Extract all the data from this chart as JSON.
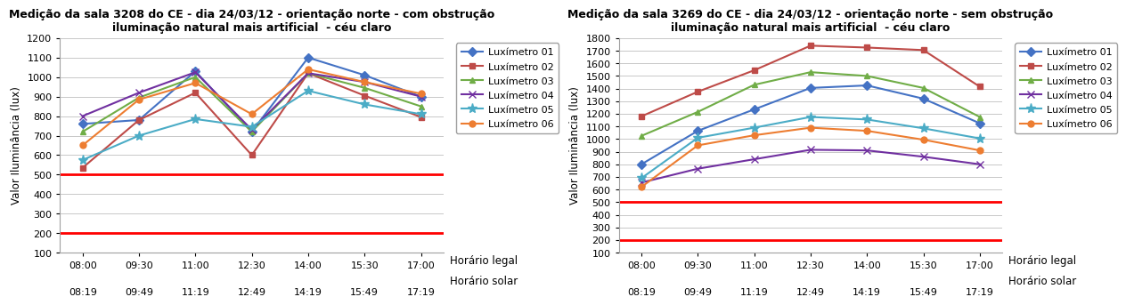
{
  "chart1": {
    "title": "Medição da sala 3208 do CE - dia 24/03/12 - orientação norte - com obstrução\niluminação natural mais artificial  - céu claro",
    "ylabel": "Valor Iluminância (lux)",
    "xlabel_legal": "Horário legal",
    "xlabel_solar": "Horário solar",
    "x_ticks_legal": [
      "08:00",
      "09:30",
      "11:00",
      "12:30",
      "14:00",
      "15:30",
      "17:00"
    ],
    "x_ticks_solar": [
      "08:19",
      "09:49",
      "11:19",
      "12:49",
      "14:19",
      "15:49",
      "17:19"
    ],
    "ylim": [
      100,
      1200
    ],
    "yticks": [
      100,
      200,
      300,
      400,
      500,
      600,
      700,
      800,
      900,
      1000,
      1100,
      1200
    ],
    "hlines": [
      500,
      200
    ],
    "series": [
      {
        "label": "Luxímetro 01",
        "color": "#4472C4",
        "marker": "D",
        "values": [
          760,
          780,
          1030,
          720,
          1100,
          1010,
          900
        ]
      },
      {
        "label": "Luxímetro 02",
        "color": "#BE4B48",
        "marker": "s",
        "values": [
          535,
          780,
          920,
          600,
          1020,
          905,
          795
        ]
      },
      {
        "label": "Luxímetro 03",
        "color": "#70AD47",
        "marker": "^",
        "values": [
          720,
          895,
          1000,
          720,
          1020,
          945,
          850
        ]
      },
      {
        "label": "Luxímetro 04",
        "color": "#7030A0",
        "marker": "x",
        "values": [
          800,
          920,
          1025,
          730,
          1020,
          975,
          900
        ]
      },
      {
        "label": "Luxímetro 05",
        "color": "#4BACC6",
        "marker": "*",
        "values": [
          575,
          700,
          785,
          745,
          930,
          860,
          810
        ]
      },
      {
        "label": "Luxímetro 06",
        "color": "#ED7D31",
        "marker": "o",
        "values": [
          650,
          885,
          970,
          810,
          1040,
          975,
          915
        ]
      }
    ]
  },
  "chart2": {
    "title": "Medição da sala 3269 do CE - dia 24/03/12 - orientação norte - sem obstrução\niluminação natural mais artificial  - céu claro",
    "ylabel": "Valor Iluminância (lux)",
    "xlabel_legal": "Horário legal",
    "xlabel_solar": "Horário solar",
    "x_ticks_legal": [
      "08:00",
      "09:30",
      "11:00",
      "12:30",
      "14:00",
      "15:30",
      "17:00"
    ],
    "x_ticks_solar": [
      "08:19",
      "09:49",
      "11:19",
      "12:49",
      "14:19",
      "15:49",
      "17:19"
    ],
    "ylim": [
      100,
      1800
    ],
    "yticks": [
      100,
      200,
      300,
      400,
      500,
      600,
      700,
      800,
      900,
      1000,
      1100,
      1200,
      1300,
      1400,
      1500,
      1600,
      1700,
      1800
    ],
    "hlines": [
      500,
      200
    ],
    "series": [
      {
        "label": "Luxímetro 01",
        "color": "#4472C4",
        "marker": "D",
        "values": [
          800,
          1065,
          1235,
          1405,
          1425,
          1320,
          1125
        ]
      },
      {
        "label": "Luxímetro 02",
        "color": "#BE4B48",
        "marker": "s",
        "values": [
          1180,
          1375,
          1545,
          1740,
          1725,
          1705,
          1415
        ]
      },
      {
        "label": "Luxímetro 03",
        "color": "#70AD47",
        "marker": "^",
        "values": [
          1025,
          1215,
          1430,
          1530,
          1500,
          1405,
          1175
        ]
      },
      {
        "label": "Luxímetro 04",
        "color": "#7030A0",
        "marker": "x",
        "values": [
          655,
          765,
          840,
          915,
          910,
          860,
          800
        ]
      },
      {
        "label": "Luxímetro 05",
        "color": "#4BACC6",
        "marker": "*",
        "values": [
          690,
          1010,
          1090,
          1175,
          1155,
          1085,
          1005
        ]
      },
      {
        "label": "Luxímetro 06",
        "color": "#ED7D31",
        "marker": "o",
        "values": [
          620,
          950,
          1030,
          1090,
          1065,
          995,
          910
        ]
      }
    ]
  },
  "background_color": "#FFFFFF",
  "grid_color": "#C8C8C8",
  "title_fontsize": 9.0,
  "axis_label_fontsize": 8.5,
  "tick_fontsize": 8.0,
  "legend_fontsize": 8.0
}
